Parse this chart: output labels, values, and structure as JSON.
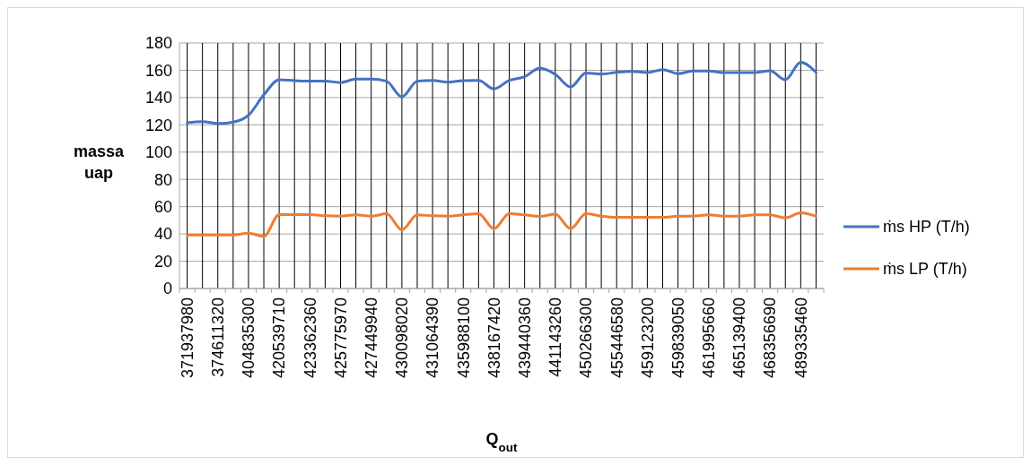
{
  "chart_data": {
    "type": "line",
    "categories": [
      "371937980",
      null,
      "374611320",
      null,
      "404835300",
      null,
      "420539710",
      null,
      "423362360",
      null,
      "425775970",
      null,
      "427449940",
      null,
      "430098020",
      null,
      "431064390",
      null,
      "435988100",
      null,
      "438167420",
      null,
      "439440360",
      null,
      "441143260",
      null,
      "450266300",
      null,
      "455446580",
      null,
      "459123200",
      null,
      "459839050",
      null,
      "461995660",
      null,
      "465139400",
      null,
      "468356690",
      null,
      "489335460",
      null
    ],
    "series": [
      {
        "name": "ṁs HP (T/h)",
        "color": "#4472c4",
        "values": [
          121.5,
          122.4,
          121,
          122,
          127,
          142,
          153,
          152.4,
          152,
          152,
          151,
          153.5,
          153.5,
          152,
          140.5,
          152,
          152.6,
          151.3,
          152.4,
          152.6,
          146.3,
          152.6,
          155.3,
          161.6,
          157,
          147.8,
          158,
          157.2,
          158.5,
          159.2,
          158.3,
          160.5,
          157.5,
          159.4,
          159.4,
          158.3,
          158.3,
          158.3,
          159.6,
          153,
          165.8,
          158.5
        ]
      },
      {
        "name": "ṁs LP (T/h)",
        "color": "#ed7d31",
        "values": [
          39.3,
          39.3,
          39.3,
          39.3,
          40.6,
          38.2,
          54.2,
          54.2,
          54.2,
          53.3,
          53,
          54,
          53,
          54.8,
          43,
          54,
          53.3,
          53,
          54,
          54.8,
          43.8,
          54.8,
          54,
          52.9,
          54.6,
          43.9,
          54.8,
          53,
          52.2,
          52.2,
          52.2,
          52.2,
          53,
          53,
          54,
          53,
          53,
          54,
          54,
          51.8,
          55.5,
          53
        ]
      }
    ],
    "xlabel": "Q$_{out}$",
    "ylabel": "massa uap",
    "ylim": [
      0,
      180
    ],
    "yticks": [
      0,
      20,
      40,
      60,
      80,
      100,
      120,
      140,
      160,
      180
    ],
    "grid": true,
    "legend": "right",
    "marker": "none",
    "line_style": "solid"
  }
}
